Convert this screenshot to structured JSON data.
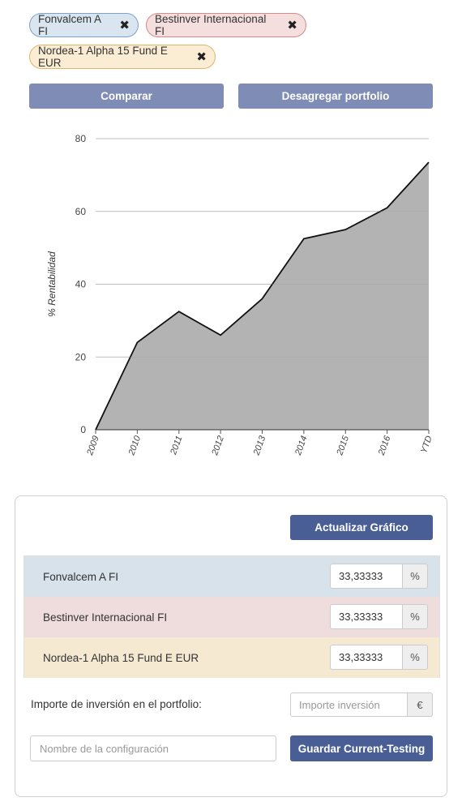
{
  "tags": [
    {
      "label": "Fonvalcem A FI",
      "remove_icon": "close-icon"
    },
    {
      "label": "Bestinver Internacional FI",
      "remove_icon": "close-icon"
    },
    {
      "label": "Nordea-1 Alpha 15 Fund E EUR",
      "remove_icon": "close-icon"
    }
  ],
  "toolbar": {
    "compare_label": "Comparar",
    "disaggregate_label": "Desagregar portfolio"
  },
  "chart_data": {
    "type": "area",
    "categories": [
      "2009",
      "2010",
      "2011",
      "2012",
      "2013",
      "2014",
      "2015",
      "2016",
      "YTD"
    ],
    "values": [
      0,
      24,
      32.5,
      26,
      36,
      52.5,
      55,
      61,
      73.5
    ],
    "ylabel": "% Rentabilidad",
    "xlabel": "",
    "ylim": [
      0,
      80
    ],
    "yticks": [
      0,
      20,
      40,
      60,
      80
    ],
    "grid": true,
    "fill_color": "#b3b3b3",
    "line_color": "#111111"
  },
  "panel": {
    "update_label": "Actualizar Gráfico",
    "allocations": [
      {
        "name": "Fonvalcem A FI",
        "value": "33,33333",
        "unit": "%",
        "color": "#d7e2eb"
      },
      {
        "name": "Bestinver Internacional FI",
        "value": "33,33333",
        "unit": "%",
        "color": "#efdcdc"
      },
      {
        "name": "Nordea-1 Alpha 15 Fund E EUR",
        "value": "33,33333",
        "unit": "%",
        "color": "#f6e9d2"
      }
    ],
    "investment_label": "Importe de inversión en el portfolio:",
    "investment_placeholder": "Importe inversión",
    "investment_unit": "€",
    "config_placeholder": "Nombre de la configuración",
    "save_label": "Guardar Current-Testing"
  },
  "colors": {
    "primary": "#4a5e96",
    "secondary": "#7f8cb5"
  }
}
